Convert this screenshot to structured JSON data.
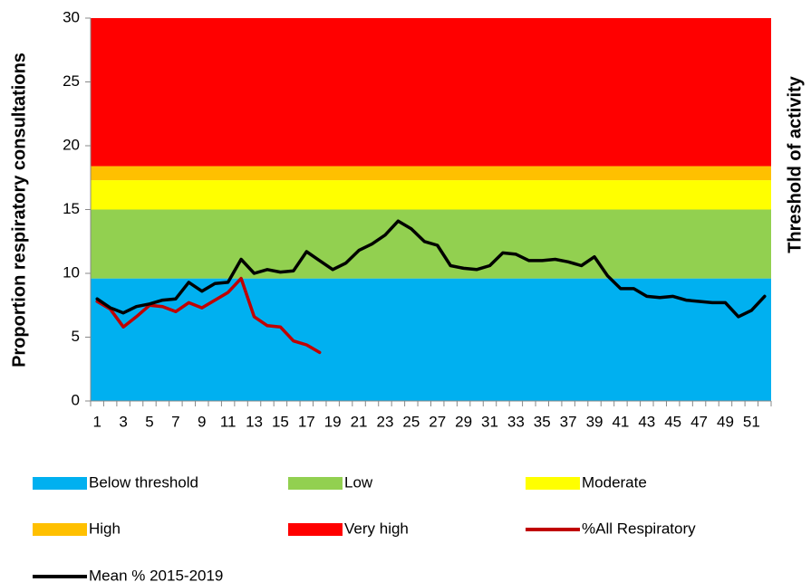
{
  "chart_data": {
    "type": "line",
    "y_label": "Proportion respiratory consultations",
    "y2_label": "Threshold of activity",
    "categories": [
      1,
      null,
      3,
      null,
      5,
      null,
      7,
      null,
      9,
      null,
      11,
      null,
      13,
      null,
      15,
      null,
      17,
      null,
      19,
      null,
      21,
      null,
      23,
      null,
      25,
      null,
      27,
      null,
      29,
      null,
      31,
      null,
      33,
      null,
      35,
      null,
      37,
      null,
      39,
      null,
      41,
      null,
      43,
      null,
      45,
      null,
      47,
      null,
      49,
      null,
      51,
      null
    ],
    "ylim": [
      0,
      30
    ],
    "yticks": [
      0,
      5,
      10,
      15,
      20,
      25,
      30
    ],
    "bands": [
      {
        "name": "Below threshold",
        "color": "#00b0f0",
        "value": 9.6
      },
      {
        "name": "Low",
        "color": "#92d050",
        "value": 5.4
      },
      {
        "name": "Moderate",
        "color": "#ffff00",
        "value": 2.3
      },
      {
        "name": "High",
        "color": "#ffc000",
        "value": 1.1
      },
      {
        "name": "Very high",
        "color": "#ff0000",
        "value": 11.6
      }
    ],
    "series": [
      {
        "name": "%All Respiratory",
        "color": "#c00000",
        "values": [
          7.8,
          7.2,
          5.8,
          6.6,
          7.5,
          7.4,
          7.0,
          7.7,
          7.3,
          7.9,
          8.5,
          9.6,
          6.6,
          5.9,
          5.8,
          4.7,
          4.4,
          3.8,
          null,
          null,
          null,
          null,
          null,
          null,
          null,
          null,
          null,
          null,
          null,
          null,
          null,
          null,
          null,
          null,
          null,
          null,
          null,
          null,
          null,
          null,
          null,
          null,
          null,
          null,
          null,
          null,
          null,
          null,
          null,
          null,
          null,
          null
        ]
      },
      {
        "name": "Mean % 2015-2019",
        "color": "#000000",
        "values": [
          8.0,
          7.3,
          6.9,
          7.4,
          7.6,
          7.9,
          8.0,
          9.3,
          8.6,
          9.2,
          9.3,
          11.1,
          10.0,
          10.3,
          10.1,
          10.2,
          11.7,
          11.0,
          10.3,
          10.8,
          11.8,
          12.3,
          13.0,
          14.1,
          13.5,
          12.5,
          12.2,
          10.6,
          10.4,
          10.3,
          10.6,
          11.6,
          11.5,
          11.0,
          11.0,
          11.1,
          10.9,
          10.6,
          11.3,
          9.8,
          8.8,
          8.8,
          8.2,
          8.1,
          8.2,
          7.9,
          7.8,
          7.7,
          7.7,
          6.6,
          7.1,
          8.2
        ]
      }
    ]
  }
}
